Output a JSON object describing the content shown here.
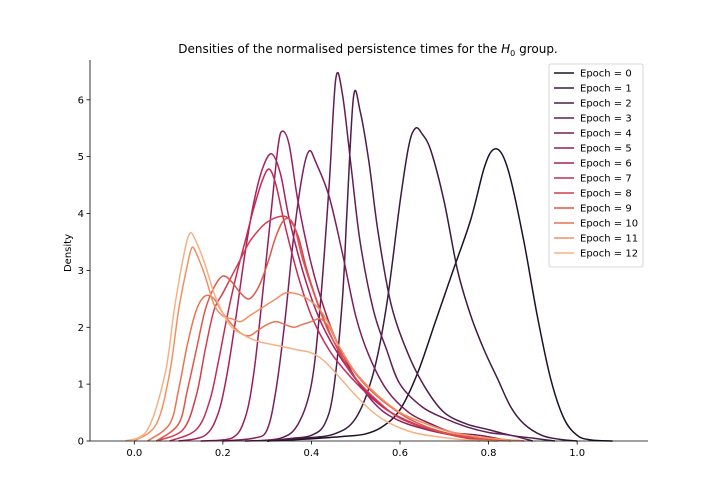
{
  "chart_data": {
    "type": "line",
    "title_prefix": "Densities of the normalised persistence times for the ",
    "title_math_main": "H",
    "title_math_sub": "0",
    "title_suffix": " group.",
    "xlabel": "",
    "ylabel": "Density",
    "xlim": [
      -0.1,
      1.16
    ],
    "ylim": [
      0,
      6.7
    ],
    "xticks": [
      0.0,
      0.2,
      0.4,
      0.6,
      0.8,
      1.0
    ],
    "xtick_labels": [
      "0.0",
      "0.2",
      "0.4",
      "0.6",
      "0.8",
      "1.0"
    ],
    "yticks": [
      0,
      1,
      2,
      3,
      4,
      5,
      6
    ],
    "ytick_labels": [
      "0",
      "1",
      "2",
      "3",
      "4",
      "5",
      "6"
    ],
    "grid": false,
    "legend_position": "top-right",
    "series": [
      {
        "name": "Epoch = 0",
        "color": "#1d1128",
        "points": [
          [
            0.3,
            0
          ],
          [
            0.38,
            0.03
          ],
          [
            0.42,
            0.05
          ],
          [
            0.47,
            0.08
          ],
          [
            0.52,
            0.12
          ],
          [
            0.56,
            0.25
          ],
          [
            0.6,
            0.55
          ],
          [
            0.64,
            1.2
          ],
          [
            0.68,
            2.1
          ],
          [
            0.72,
            3.0
          ],
          [
            0.76,
            3.9
          ],
          [
            0.79,
            4.8
          ],
          [
            0.81,
            5.12
          ],
          [
            0.83,
            5.05
          ],
          [
            0.85,
            4.6
          ],
          [
            0.88,
            3.5
          ],
          [
            0.91,
            2.2
          ],
          [
            0.94,
            1.1
          ],
          [
            0.97,
            0.4
          ],
          [
            1.0,
            0.1
          ],
          [
            1.03,
            0.02
          ],
          [
            1.08,
            0
          ]
        ]
      },
      {
        "name": "Epoch = 1",
        "color": "#3b1a3f",
        "points": [
          [
            0.3,
            0
          ],
          [
            0.38,
            0.05
          ],
          [
            0.45,
            0.12
          ],
          [
            0.5,
            0.4
          ],
          [
            0.54,
            1.2
          ],
          [
            0.57,
            2.4
          ],
          [
            0.6,
            4.2
          ],
          [
            0.62,
            5.2
          ],
          [
            0.635,
            5.5
          ],
          [
            0.65,
            5.4
          ],
          [
            0.67,
            5.1
          ],
          [
            0.7,
            4.2
          ],
          [
            0.73,
            3.0
          ],
          [
            0.76,
            2.2
          ],
          [
            0.79,
            1.6
          ],
          [
            0.82,
            1.1
          ],
          [
            0.85,
            0.6
          ],
          [
            0.88,
            0.3
          ],
          [
            0.92,
            0.1
          ],
          [
            0.96,
            0.03
          ],
          [
            1.0,
            0
          ]
        ]
      },
      {
        "name": "Epoch = 2",
        "color": "#4e1d4c",
        "points": [
          [
            0.3,
            0
          ],
          [
            0.36,
            0.05
          ],
          [
            0.4,
            0.1
          ],
          [
            0.43,
            0.3
          ],
          [
            0.45,
            0.9
          ],
          [
            0.47,
            2.5
          ],
          [
            0.48,
            4.0
          ],
          [
            0.495,
            6.05
          ],
          [
            0.51,
            5.8
          ],
          [
            0.53,
            4.9
          ],
          [
            0.55,
            3.7
          ],
          [
            0.58,
            2.4
          ],
          [
            0.62,
            1.5
          ],
          [
            0.66,
            0.9
          ],
          [
            0.7,
            0.5
          ],
          [
            0.75,
            0.3
          ],
          [
            0.8,
            0.2
          ],
          [
            0.85,
            0.1
          ],
          [
            0.9,
            0.05
          ],
          [
            0.95,
            0
          ]
        ]
      },
      {
        "name": "Epoch = 3",
        "color": "#621e55",
        "points": [
          [
            0.25,
            0
          ],
          [
            0.33,
            0.05
          ],
          [
            0.37,
            0.3
          ],
          [
            0.4,
            1.0
          ],
          [
            0.42,
            2.4
          ],
          [
            0.44,
            4.5
          ],
          [
            0.455,
            6.37
          ],
          [
            0.47,
            6.1
          ],
          [
            0.49,
            4.8
          ],
          [
            0.51,
            3.5
          ],
          [
            0.54,
            2.3
          ],
          [
            0.57,
            1.6
          ],
          [
            0.6,
            1.0
          ],
          [
            0.65,
            0.6
          ],
          [
            0.7,
            0.4
          ],
          [
            0.75,
            0.25
          ],
          [
            0.8,
            0.15
          ],
          [
            0.85,
            0.1
          ],
          [
            0.9,
            0
          ]
        ]
      },
      {
        "name": "Epoch = 4",
        "color": "#7a1f5c",
        "points": [
          [
            0.2,
            0
          ],
          [
            0.27,
            0.05
          ],
          [
            0.3,
            0.2
          ],
          [
            0.32,
            0.9
          ],
          [
            0.34,
            2.1
          ],
          [
            0.36,
            3.6
          ],
          [
            0.38,
            4.7
          ],
          [
            0.395,
            5.1
          ],
          [
            0.41,
            4.9
          ],
          [
            0.44,
            4.3
          ],
          [
            0.47,
            3.3
          ],
          [
            0.5,
            2.2
          ],
          [
            0.53,
            1.5
          ],
          [
            0.57,
            0.9
          ],
          [
            0.62,
            0.5
          ],
          [
            0.67,
            0.3
          ],
          [
            0.72,
            0.15
          ],
          [
            0.78,
            0.1
          ],
          [
            0.85,
            0
          ]
        ]
      },
      {
        "name": "Epoch = 5",
        "color": "#931f5e",
        "points": [
          [
            0.15,
            0
          ],
          [
            0.22,
            0.05
          ],
          [
            0.25,
            0.4
          ],
          [
            0.27,
            1.2
          ],
          [
            0.29,
            2.6
          ],
          [
            0.31,
            4.1
          ],
          [
            0.325,
            5.2
          ],
          [
            0.335,
            5.45
          ],
          [
            0.35,
            5.2
          ],
          [
            0.37,
            4.2
          ],
          [
            0.4,
            3.1
          ],
          [
            0.43,
            2.3
          ],
          [
            0.46,
            1.7
          ],
          [
            0.5,
            1.1
          ],
          [
            0.55,
            0.6
          ],
          [
            0.6,
            0.35
          ],
          [
            0.66,
            0.2
          ],
          [
            0.72,
            0.1
          ],
          [
            0.8,
            0
          ]
        ]
      },
      {
        "name": "Epoch = 6",
        "color": "#ab1f5d",
        "points": [
          [
            0.1,
            0
          ],
          [
            0.16,
            0.1
          ],
          [
            0.19,
            0.5
          ],
          [
            0.21,
            1.2
          ],
          [
            0.23,
            2.2
          ],
          [
            0.25,
            3.3
          ],
          [
            0.27,
            4.2
          ],
          [
            0.29,
            4.8
          ],
          [
            0.31,
            5.05
          ],
          [
            0.33,
            4.7
          ],
          [
            0.35,
            3.9
          ],
          [
            0.38,
            3.0
          ],
          [
            0.41,
            2.3
          ],
          [
            0.44,
            1.8
          ],
          [
            0.48,
            1.3
          ],
          [
            0.52,
            0.9
          ],
          [
            0.57,
            0.55
          ],
          [
            0.63,
            0.3
          ],
          [
            0.7,
            0.15
          ],
          [
            0.78,
            0
          ]
        ]
      },
      {
        "name": "Epoch = 7",
        "color": "#c32b57",
        "points": [
          [
            0.08,
            0
          ],
          [
            0.14,
            0.2
          ],
          [
            0.17,
            0.7
          ],
          [
            0.19,
            1.4
          ],
          [
            0.21,
            2.2
          ],
          [
            0.23,
            2.9
          ],
          [
            0.25,
            3.5
          ],
          [
            0.27,
            4.1
          ],
          [
            0.29,
            4.6
          ],
          [
            0.305,
            4.78
          ],
          [
            0.32,
            4.5
          ],
          [
            0.34,
            3.8
          ],
          [
            0.37,
            2.9
          ],
          [
            0.4,
            2.2
          ],
          [
            0.44,
            1.6
          ],
          [
            0.48,
            1.2
          ],
          [
            0.53,
            0.8
          ],
          [
            0.58,
            0.5
          ],
          [
            0.65,
            0.25
          ],
          [
            0.72,
            0.1
          ],
          [
            0.8,
            0
          ]
        ]
      },
      {
        "name": "Epoch = 8",
        "color": "#d43d4f",
        "points": [
          [
            0.05,
            0
          ],
          [
            0.11,
            0.2
          ],
          [
            0.14,
            0.8
          ],
          [
            0.16,
            1.6
          ],
          [
            0.18,
            2.3
          ],
          [
            0.2,
            2.6
          ],
          [
            0.22,
            2.9
          ],
          [
            0.24,
            3.2
          ],
          [
            0.26,
            3.5
          ],
          [
            0.28,
            3.7
          ],
          [
            0.3,
            3.85
          ],
          [
            0.33,
            3.95
          ],
          [
            0.35,
            3.9
          ],
          [
            0.37,
            3.6
          ],
          [
            0.39,
            3.0
          ],
          [
            0.42,
            2.3
          ],
          [
            0.46,
            1.6
          ],
          [
            0.5,
            1.1
          ],
          [
            0.55,
            0.7
          ],
          [
            0.6,
            0.4
          ],
          [
            0.67,
            0.2
          ],
          [
            0.75,
            0.05
          ],
          [
            0.82,
            0
          ]
        ]
      },
      {
        "name": "Epoch = 9",
        "color": "#e05648",
        "points": [
          [
            0.05,
            0
          ],
          [
            0.1,
            0.3
          ],
          [
            0.12,
            0.9
          ],
          [
            0.14,
            1.6
          ],
          [
            0.16,
            2.3
          ],
          [
            0.18,
            2.7
          ],
          [
            0.2,
            2.9
          ],
          [
            0.22,
            2.8
          ],
          [
            0.24,
            2.6
          ],
          [
            0.26,
            2.5
          ],
          [
            0.28,
            2.7
          ],
          [
            0.3,
            3.1
          ],
          [
            0.32,
            3.6
          ],
          [
            0.34,
            3.9
          ],
          [
            0.36,
            3.8
          ],
          [
            0.38,
            3.2
          ],
          [
            0.41,
            2.5
          ],
          [
            0.44,
            1.9
          ],
          [
            0.48,
            1.4
          ],
          [
            0.52,
            1.0
          ],
          [
            0.57,
            0.65
          ],
          [
            0.63,
            0.35
          ],
          [
            0.7,
            0.15
          ],
          [
            0.78,
            0.05
          ],
          [
            0.85,
            0
          ]
        ]
      },
      {
        "name": "Epoch = 10",
        "color": "#e97450",
        "points": [
          [
            0.03,
            0
          ],
          [
            0.08,
            0.3
          ],
          [
            0.1,
            0.9
          ],
          [
            0.12,
            1.7
          ],
          [
            0.14,
            2.3
          ],
          [
            0.16,
            2.55
          ],
          [
            0.18,
            2.5
          ],
          [
            0.2,
            2.25
          ],
          [
            0.22,
            2.05
          ],
          [
            0.24,
            1.9
          ],
          [
            0.26,
            1.85
          ],
          [
            0.28,
            1.95
          ],
          [
            0.3,
            2.05
          ],
          [
            0.32,
            2.1
          ],
          [
            0.34,
            2.05
          ],
          [
            0.36,
            2.0
          ],
          [
            0.38,
            2.05
          ],
          [
            0.4,
            2.1
          ],
          [
            0.42,
            2.15
          ],
          [
            0.44,
            2.0
          ],
          [
            0.46,
            1.7
          ],
          [
            0.5,
            1.2
          ],
          [
            0.55,
            0.8
          ],
          [
            0.6,
            0.5
          ],
          [
            0.66,
            0.3
          ],
          [
            0.72,
            0.15
          ],
          [
            0.8,
            0.05
          ],
          [
            0.88,
            0
          ]
        ]
      },
      {
        "name": "Epoch = 11",
        "color": "#f19163",
        "points": [
          [
            0.0,
            0
          ],
          [
            0.05,
            0.3
          ],
          [
            0.08,
            1.2
          ],
          [
            0.1,
            2.3
          ],
          [
            0.12,
            3.1
          ],
          [
            0.13,
            3.4
          ],
          [
            0.14,
            3.3
          ],
          [
            0.16,
            2.9
          ],
          [
            0.18,
            2.4
          ],
          [
            0.2,
            2.2
          ],
          [
            0.22,
            2.15
          ],
          [
            0.24,
            2.1
          ],
          [
            0.26,
            2.2
          ],
          [
            0.28,
            2.3
          ],
          [
            0.3,
            2.4
          ],
          [
            0.32,
            2.5
          ],
          [
            0.34,
            2.6
          ],
          [
            0.36,
            2.6
          ],
          [
            0.38,
            2.55
          ],
          [
            0.4,
            2.45
          ],
          [
            0.42,
            2.3
          ],
          [
            0.44,
            2.05
          ],
          [
            0.46,
            1.7
          ],
          [
            0.5,
            1.2
          ],
          [
            0.55,
            0.8
          ],
          [
            0.6,
            0.5
          ],
          [
            0.66,
            0.3
          ],
          [
            0.72,
            0.15
          ],
          [
            0.8,
            0.05
          ],
          [
            0.88,
            0
          ]
        ]
      },
      {
        "name": "Epoch = 12",
        "color": "#f5b285",
        "points": [
          [
            -0.02,
            0
          ],
          [
            0.03,
            0.2
          ],
          [
            0.07,
            1.2
          ],
          [
            0.09,
            2.3
          ],
          [
            0.11,
            3.2
          ],
          [
            0.125,
            3.65
          ],
          [
            0.14,
            3.5
          ],
          [
            0.16,
            3.1
          ],
          [
            0.18,
            2.6
          ],
          [
            0.2,
            2.25
          ],
          [
            0.22,
            2.0
          ],
          [
            0.25,
            1.85
          ],
          [
            0.28,
            1.75
          ],
          [
            0.31,
            1.7
          ],
          [
            0.34,
            1.65
          ],
          [
            0.37,
            1.6
          ],
          [
            0.4,
            1.55
          ],
          [
            0.43,
            1.4
          ],
          [
            0.46,
            1.15
          ],
          [
            0.5,
            0.8
          ],
          [
            0.54,
            0.5
          ],
          [
            0.58,
            0.3
          ],
          [
            0.63,
            0.15
          ],
          [
            0.68,
            0.08
          ],
          [
            0.75,
            0.02
          ],
          [
            0.82,
            0
          ]
        ]
      }
    ]
  }
}
